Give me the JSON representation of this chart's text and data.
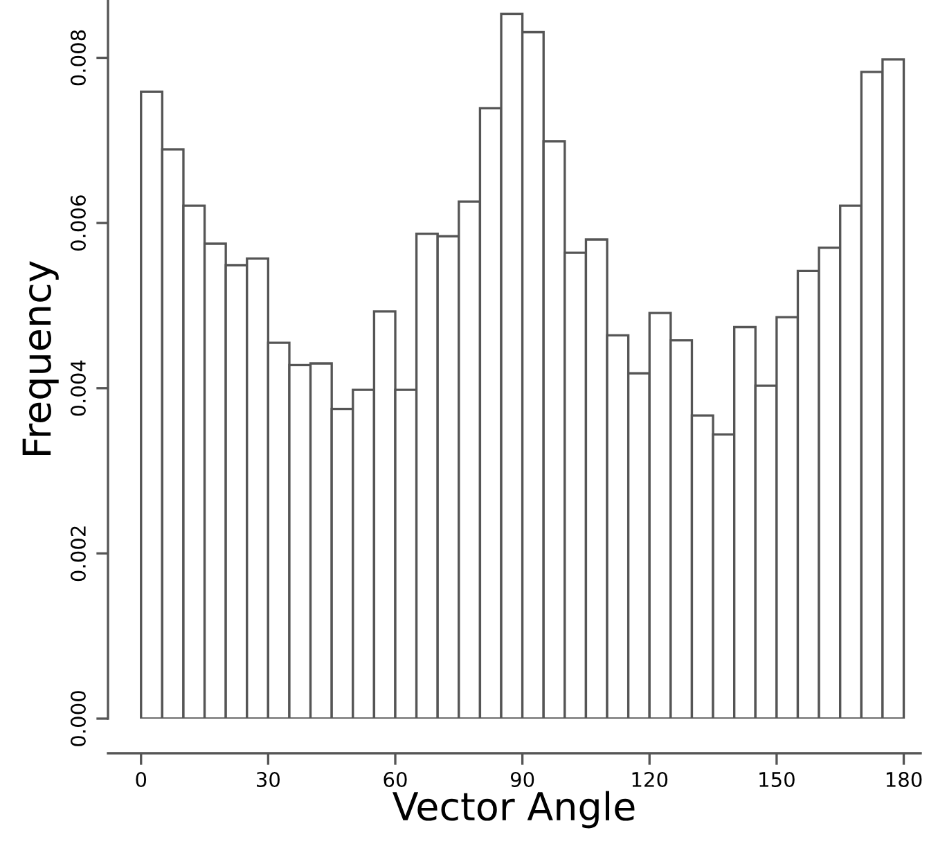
{
  "chart_data": {
    "type": "histogram",
    "xlabel": "Vector Angle",
    "ylabel": "Frequency",
    "bins": [
      0,
      5,
      10,
      15,
      20,
      25,
      30,
      35,
      40,
      45,
      50,
      55,
      60,
      65,
      70,
      75,
      80,
      85,
      90,
      95,
      100,
      105,
      110,
      115,
      120,
      125,
      130,
      135,
      140,
      145,
      150,
      155,
      160,
      165,
      170,
      175,
      180
    ],
    "values": [
      0.00759,
      0.00689,
      0.00621,
      0.00575,
      0.00549,
      0.00557,
      0.00455,
      0.00428,
      0.0043,
      0.00375,
      0.00398,
      0.00493,
      0.00398,
      0.00587,
      0.00584,
      0.00626,
      0.00739,
      0.00853,
      0.00831,
      0.00699,
      0.00564,
      0.0058,
      0.00464,
      0.00418,
      0.00491,
      0.00458,
      0.00367,
      0.00344,
      0.00474,
      0.00403,
      0.00486,
      0.00542,
      0.0057,
      0.00621,
      0.00783,
      0.00798
    ],
    "color": "#ffffff",
    "xlim": [
      -7.8,
      184
    ],
    "ylim": [
      0,
      0.0087
    ],
    "xticks": [
      0,
      30,
      60,
      90,
      120,
      150,
      180
    ],
    "yticks": [
      {
        "value": 0,
        "label": "0.000"
      },
      {
        "value": 0.002,
        "label": "0.002"
      },
      {
        "value": 0.004,
        "label": "0.004"
      },
      {
        "value": 0.006,
        "label": "0.006"
      },
      {
        "value": 0.008,
        "label": "0.008"
      }
    ],
    "grid": false
  }
}
